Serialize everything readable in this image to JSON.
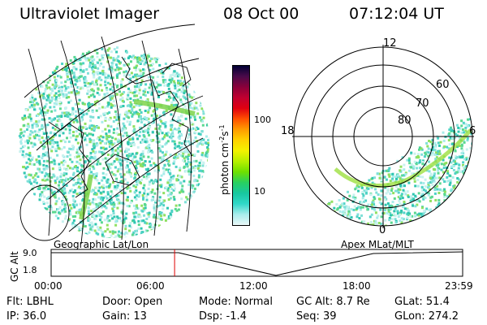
{
  "header": {
    "instrument": "Ultraviolet Imager",
    "date": "08 Oct 00",
    "time": "07:12:04 UT"
  },
  "left_panel": {
    "caption": "Geographic Lat/Lon"
  },
  "right_panel": {
    "caption": "Apex MLat/MLT",
    "mlt_labels": [
      "12",
      "18",
      "6",
      "0"
    ],
    "lat_labels": [
      "60",
      "70",
      "80"
    ]
  },
  "colorbar": {
    "unit_label": "photon cm",
    "unit_sup1": "-2",
    "unit_s": "s",
    "unit_sup2": "-1",
    "ticks": [
      "100",
      "10"
    ],
    "colors": [
      "#000033",
      "#4a0a4a",
      "#8a003a",
      "#c00030",
      "#e00010",
      "#ff5000",
      "#ff9c00",
      "#ffd200",
      "#f3f300",
      "#b6f000",
      "#6ee000",
      "#28d060",
      "#18c8a0",
      "#30d8c8",
      "#a8ecec",
      "#eaf8f8"
    ]
  },
  "altitude_plot": {
    "axis_label": "GC Alt",
    "y_ticks": [
      "9.0",
      "1.8"
    ],
    "x_ticks": [
      "00:00",
      "06:00",
      "12:00",
      "18:00",
      "23:59"
    ],
    "current_time_fraction": 0.3
  },
  "status": {
    "filter": "Flt: LBHL",
    "ip": "IP: 36.0",
    "door": "Door: Open",
    "gain": "Gain: 13",
    "mode": "Mode: Normal",
    "dsp": "Dsp:   -1.4",
    "gc_alt": "GC Alt: 8.7 Re",
    "seq": "Seq: 39",
    "glat": "GLat:  51.4",
    "glon": "GLon: 274.2"
  }
}
